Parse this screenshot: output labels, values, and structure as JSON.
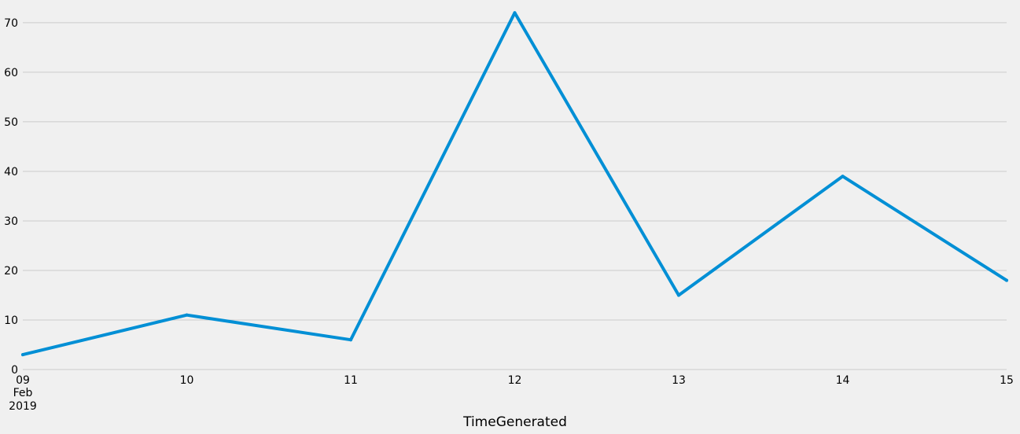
{
  "chart_data": {
    "type": "line",
    "x": [
      "2019-02-09",
      "2019-02-10",
      "2019-02-11",
      "2019-02-12",
      "2019-02-13",
      "2019-02-14",
      "2019-02-15"
    ],
    "x_tick_labels": [
      "09",
      "10",
      "11",
      "12",
      "13",
      "14",
      "15"
    ],
    "x_tick_sublabels": [
      "Feb",
      "2019"
    ],
    "series": [
      {
        "values": [
          3,
          11,
          6,
          72,
          15,
          39,
          18
        ],
        "color": "#008fd5"
      }
    ],
    "xlabel": "TimeGenerated",
    "ylabel": "",
    "ylim": [
      0,
      73
    ],
    "yticks": [
      0,
      10,
      20,
      30,
      40,
      50,
      60,
      70
    ],
    "grid": "horizontal",
    "background": "#f0f0f0"
  }
}
